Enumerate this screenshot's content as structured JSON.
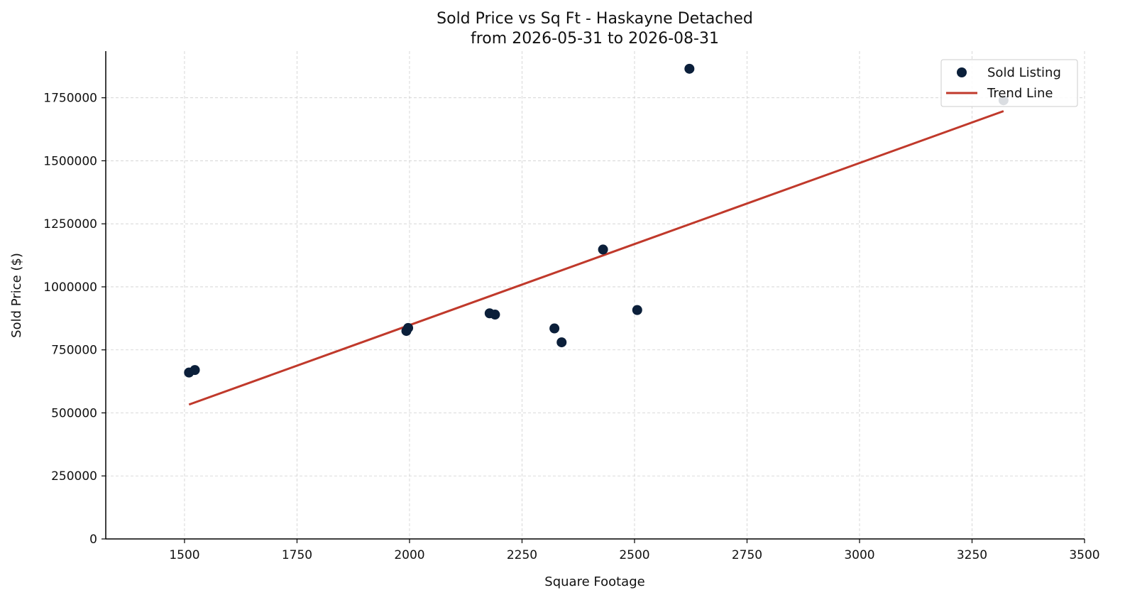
{
  "chart_data": {
    "type": "scatter",
    "title": "Sold Price vs Sq Ft - Haskayne Detached",
    "subtitle": "from 2026-05-31 to 2026-08-31",
    "xlabel": "Square Footage",
    "ylabel": "Sold Price ($)",
    "xlim": [
      1325,
      3500
    ],
    "ylim": [
      0,
      1935000
    ],
    "x_ticks": [
      1500,
      1750,
      2000,
      2250,
      2500,
      2750,
      3000,
      3250,
      3500
    ],
    "y_ticks": [
      0,
      250000,
      500000,
      750000,
      1000000,
      1250000,
      1500000,
      1750000
    ],
    "grid": true,
    "legend_position": "top-right",
    "series": [
      {
        "name": "Sold Listing",
        "kind": "scatter",
        "color": "#0b1f3a",
        "points": [
          {
            "x": 1510,
            "y": 660000
          },
          {
            "x": 1523,
            "y": 670000
          },
          {
            "x": 1993,
            "y": 825000
          },
          {
            "x": 1997,
            "y": 837000
          },
          {
            "x": 2178,
            "y": 895000
          },
          {
            "x": 2190,
            "y": 890000
          },
          {
            "x": 2322,
            "y": 835000
          },
          {
            "x": 2338,
            "y": 780000
          },
          {
            "x": 2430,
            "y": 1148000
          },
          {
            "x": 2506,
            "y": 908000
          },
          {
            "x": 2622,
            "y": 1865000
          },
          {
            "x": 3320,
            "y": 1740000
          }
        ]
      },
      {
        "name": "Trend Line",
        "kind": "line",
        "color": "#c0392b",
        "points": [
          {
            "x": 1510,
            "y": 533000
          },
          {
            "x": 3320,
            "y": 1697000
          }
        ]
      }
    ]
  }
}
